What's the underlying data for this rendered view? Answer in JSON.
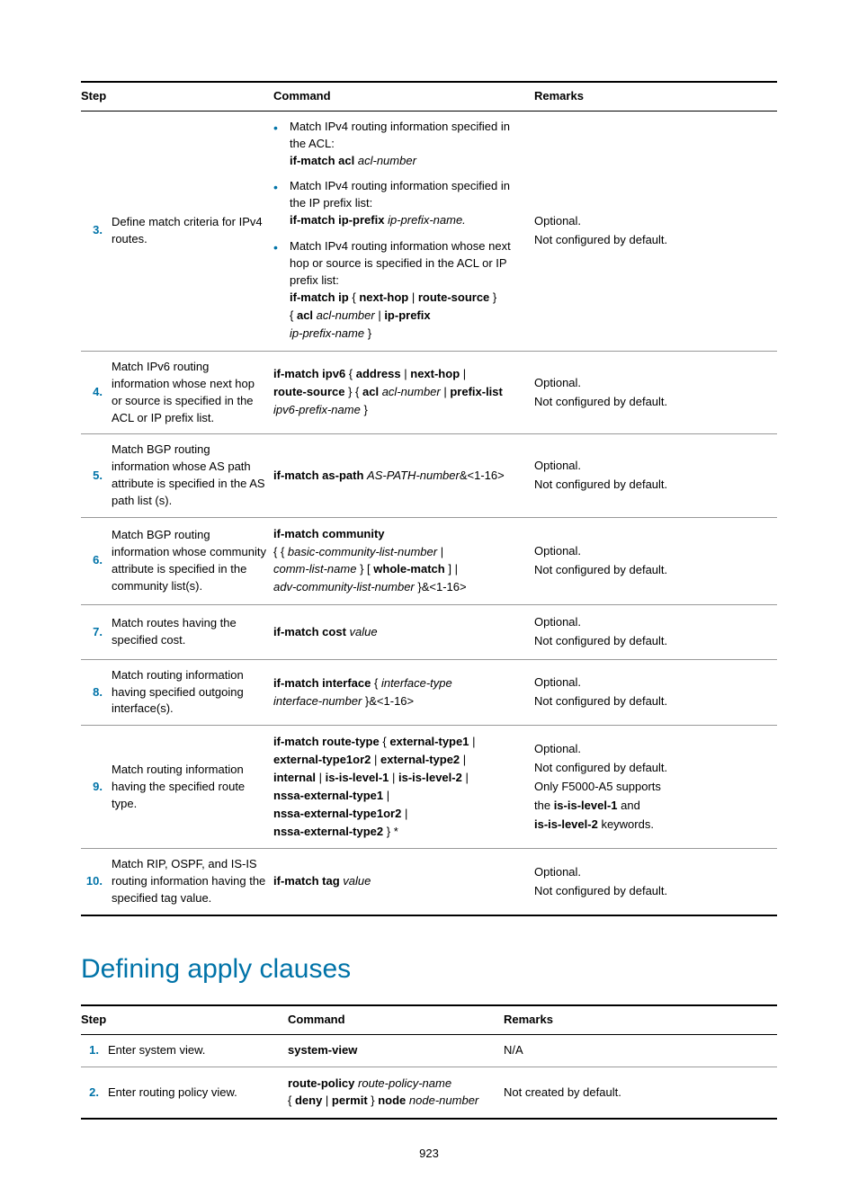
{
  "page_number": "923",
  "section_heading": "Defining apply clauses",
  "table1": {
    "headers": {
      "step": "Step",
      "command": "Command",
      "remarks": "Remarks"
    },
    "remarks_optional": "Optional.",
    "remarks_notconf": "Not configured by default.",
    "row3": {
      "num": "3.",
      "desc": "Define match criteria for IPv4 routes.",
      "b1_text": "Match IPv4 routing information specified in the ACL:",
      "b1_cmd_b": "if-match acl",
      "b1_cmd_i": "acl-number",
      "b2_text": "Match IPv4 routing information specified in the IP prefix list:",
      "b2_cmd_b": "if-match ip-prefix",
      "b2_cmd_i": "ip-prefix-name.",
      "b3_text": "Match IPv4 routing information whose next hop or source is specified in the ACL or IP prefix list:",
      "b3_l1_a": "if-match ip",
      "b3_l1_b": "next-hop",
      "b3_l1_c": "route-source",
      "b3_l2_a": "acl",
      "b3_l2_b": "acl-number",
      "b3_l2_c": "ip-prefix",
      "b3_l3_a": "ip-prefix-name"
    },
    "row4": {
      "num": "4.",
      "desc": "Match IPv6 routing information whose next hop or source is specified in the ACL or IP prefix list.",
      "l1_a": "if-match ipv6",
      "l1_b": "address",
      "l1_c": "next-hop",
      "l2_a": "route-source",
      "l2_b": "acl",
      "l2_c": "acl-number",
      "l2_d": "prefix-list",
      "l3_a": "ipv6-prefix-name"
    },
    "row5": {
      "num": "5.",
      "desc": "Match BGP routing information whose AS path attribute is specified in the AS path list (s).",
      "c_a": "if-match as-path",
      "c_b": "AS-PATH-number",
      "c_c": "&<1-16>"
    },
    "row6": {
      "num": "6.",
      "desc": "Match BGP routing information whose community attribute is specified in the community list(s).",
      "l1": "if-match community",
      "l2_a": "basic-community-list-number",
      "l3_a": "comm-list-name",
      "l3_b": "whole-match",
      "l4_a": "adv-community-list-number",
      "l4_b": "}&<1-16>"
    },
    "row7": {
      "num": "7.",
      "desc": "Match routes having the specified cost.",
      "c_a": "if-match cost",
      "c_b": "value"
    },
    "row8": {
      "num": "8.",
      "desc": "Match routing information having specified outgoing interface(s).",
      "c_a": "if-match interface",
      "c_b": "interface-type",
      "l2_a": "interface-number",
      "l2_b": "}&<1-16>"
    },
    "row9": {
      "num": "9.",
      "desc": "Match routing information having the specified route type.",
      "l1_a": "if-match route-type",
      "l1_b": "external-type1",
      "l2_a": "external-type1or2",
      "l2_b": "external-type2",
      "l3_a": "internal",
      "l3_b": "is-is-level-1",
      "l3_c": "is-is-level-2",
      "l4_a": "nssa-external-type1",
      "l5_a": "nssa-external-type1or2",
      "l6_a": "nssa-external-type2",
      "r3_a": "Only F5000-A5 supports",
      "r4_a": "the ",
      "r4_b": "is-is-level-1",
      "r4_c": " and",
      "r5_a": "is-is-level-2",
      "r5_b": " keywords."
    },
    "row10": {
      "num": "10.",
      "desc": "Match RIP, OSPF, and IS-IS routing information having the specified tag value.",
      "c_a": "if-match tag",
      "c_b": "value"
    }
  },
  "table2": {
    "headers": {
      "step": "Step",
      "command": "Command",
      "remarks": "Remarks"
    },
    "row1": {
      "num": "1.",
      "desc": "Enter system view.",
      "cmd": "system-view",
      "remarks": "N/A"
    },
    "row2": {
      "num": "2.",
      "desc": "Enter routing policy view.",
      "l1_a": "route-policy",
      "l1_b": "route-policy-name",
      "l2_a": "deny",
      "l2_b": "permit",
      "l2_c": "node",
      "l2_d": "node-number",
      "remarks": "Not created by default."
    }
  }
}
